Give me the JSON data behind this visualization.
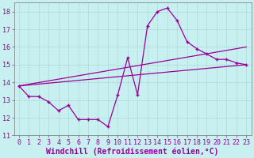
{
  "xlabel": "Windchill (Refroidissement éolien,°C)",
  "x_data": [
    0,
    1,
    2,
    3,
    4,
    5,
    6,
    7,
    8,
    9,
    10,
    11,
    12,
    13,
    14,
    15,
    16,
    17,
    18,
    19,
    20,
    21,
    22,
    23
  ],
  "y_main": [
    13.8,
    13.2,
    13.2,
    12.9,
    12.4,
    12.7,
    11.9,
    11.9,
    11.9,
    11.5,
    13.3,
    15.4,
    13.3,
    17.2,
    18.0,
    18.2,
    17.5,
    16.3,
    15.9,
    15.6,
    15.3,
    15.3,
    15.1,
    15.0
  ],
  "line1_x": [
    0,
    23
  ],
  "line1_y": [
    13.8,
    15.0
  ],
  "line2_x": [
    0,
    23
  ],
  "line2_y": [
    13.8,
    16.0
  ],
  "ylim": [
    11.0,
    18.5
  ],
  "xlim": [
    -0.5,
    23.5
  ],
  "yticks": [
    11,
    12,
    13,
    14,
    15,
    16,
    17,
    18
  ],
  "xticks": [
    0,
    1,
    2,
    3,
    4,
    5,
    6,
    7,
    8,
    9,
    10,
    11,
    12,
    13,
    14,
    15,
    16,
    17,
    18,
    19,
    20,
    21,
    22,
    23
  ],
  "line_color": "#990099",
  "bg_color": "#c8f0f0",
  "grid_color": "#b0dede",
  "tick_fontsize": 6,
  "label_fontsize": 7
}
